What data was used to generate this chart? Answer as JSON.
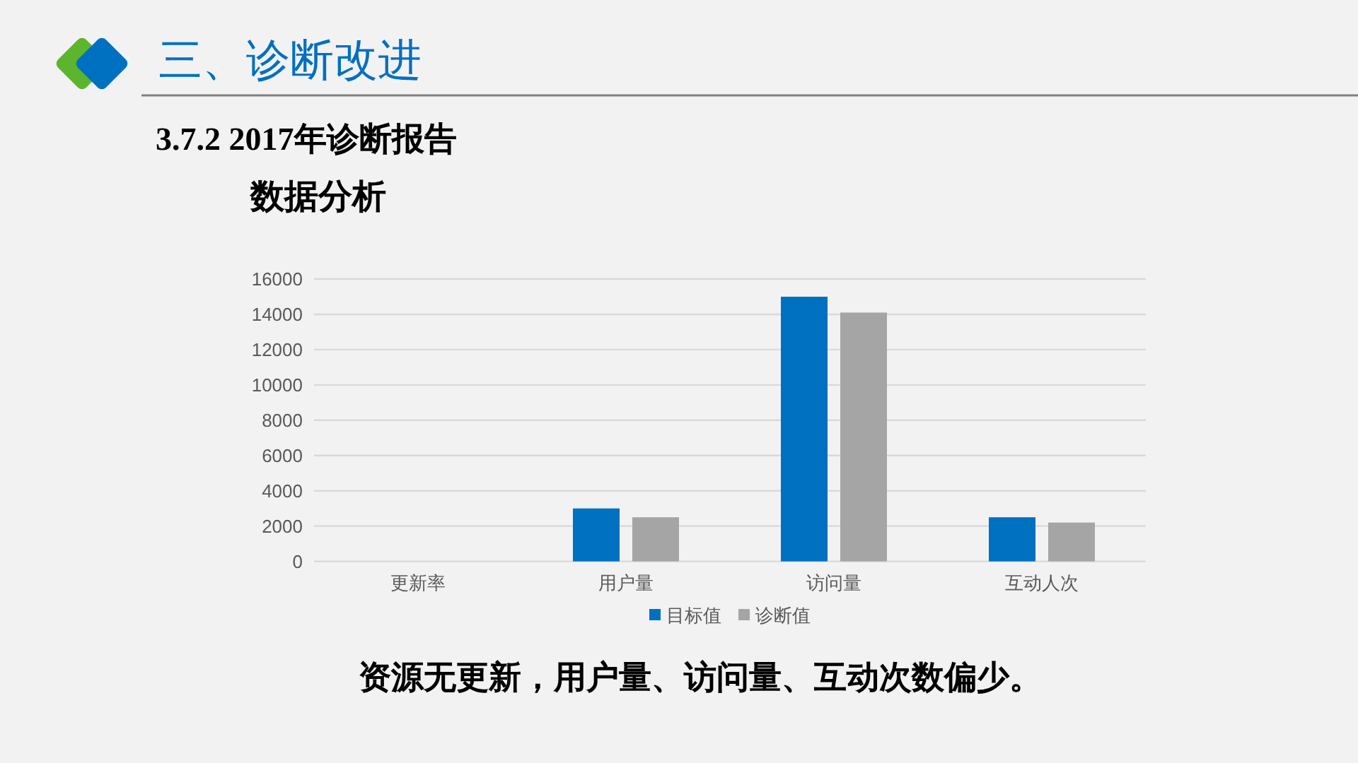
{
  "chart_data": {
    "type": "bar",
    "title": "三、诊断改进",
    "subtitle": "3.7.2 2017年诊断报告",
    "annotations": [
      "数据分析",
      "资源无更新，用户量、访问量、互动次数偏少。"
    ],
    "categories": [
      "更新率",
      "用户量",
      "访问量",
      "互动人次"
    ],
    "series": [
      {
        "name": "目标值",
        "color": "#0070c0",
        "values": [
          0,
          3000,
          15000,
          2500
        ]
      },
      {
        "name": "诊断值",
        "color": "#a5a5a5",
        "values": [
          0,
          2500,
          14100,
          2200
        ]
      }
    ],
    "ylim": [
      0,
      16000
    ],
    "yticks": [
      0,
      2000,
      4000,
      6000,
      8000,
      10000,
      12000,
      14000,
      16000
    ],
    "grid": "y",
    "legend": "bottom"
  }
}
